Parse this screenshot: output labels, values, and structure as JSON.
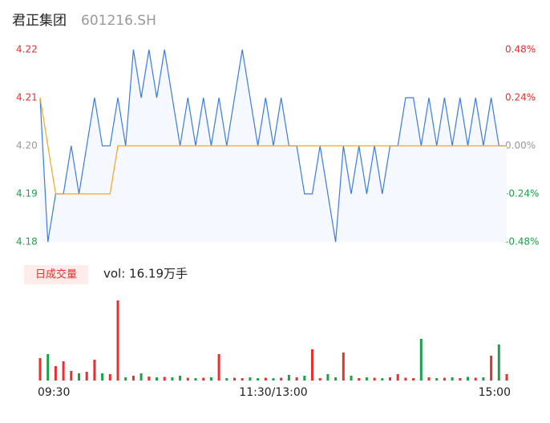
{
  "header": {
    "title": "君正集团",
    "code": "601216.SH"
  },
  "chart_data": [
    {
      "type": "line",
      "xlim": [
        0,
        60
      ],
      "ylim": [
        4.18,
        4.22
      ],
      "yticks": [
        4.22,
        4.21,
        {
          "value": 4.2,
          "label": "4.20"
        },
        4.19,
        4.18
      ],
      "y2lim": [
        -0.48,
        0.48
      ],
      "y2ticks": [
        {
          "value": 0.48,
          "label": "0.48%"
        },
        {
          "value": 0.24,
          "label": "0.24%"
        },
        {
          "value": 0,
          "label": "0.00%"
        },
        {
          "value": -0.24,
          "label": "-0.24%"
        },
        {
          "value": -0.48,
          "label": "-0.48%"
        }
      ],
      "series": [
        {
          "color": "#3b7be8",
          "values": [
            4.21,
            4.18,
            4.19,
            4.19,
            4.2,
            4.19,
            4.2,
            4.21,
            4.2,
            4.2,
            4.21,
            4.2,
            4.22,
            4.21,
            4.22,
            4.21,
            4.22,
            4.21,
            4.2,
            4.21,
            4.2,
            4.21,
            4.2,
            4.21,
            4.2,
            4.21,
            4.22,
            4.21,
            4.2,
            4.21,
            4.2,
            4.21,
            4.2,
            4.2,
            4.19,
            4.19,
            4.2,
            4.19,
            4.18,
            4.2,
            4.19,
            4.2,
            4.19,
            4.2,
            4.19,
            4.2,
            4.2,
            4.21,
            4.21,
            4.2,
            4.21,
            4.2,
            4.21,
            4.2,
            4.21,
            4.2,
            4.21,
            4.2,
            4.21,
            4.2,
            4.2
          ]
        },
        {
          "color": "#f5a623",
          "values": [
            4.21,
            4.2,
            4.19,
            4.19,
            4.19,
            4.19,
            4.19,
            4.19,
            4.19,
            4.19,
            4.2,
            4.2,
            4.2,
            4.2,
            4.2,
            4.2,
            4.2,
            4.2,
            4.2,
            4.2,
            4.2,
            4.2,
            4.2,
            4.2,
            4.2,
            4.2,
            4.2,
            4.2,
            4.2,
            4.2,
            4.2,
            4.2,
            4.2,
            4.2,
            4.2,
            4.2,
            4.2,
            4.2,
            4.2,
            4.2,
            4.2,
            4.2,
            4.2,
            4.2,
            4.2,
            4.2,
            4.2,
            4.2,
            4.2,
            4.2,
            4.2,
            4.2,
            4.2,
            4.2,
            4.2,
            4.2,
            4.2,
            4.2,
            4.2,
            4.2,
            4.2
          ]
        }
      ]
    },
    {
      "type": "bar",
      "legend": "日成交量",
      "summary": "vol: 16.19万手",
      "xlim": [
        0,
        60
      ],
      "ylim": [
        0,
        1000
      ],
      "xticks": [
        {
          "value": 0,
          "label": "09:30"
        },
        {
          "value": 30,
          "label": "11:30/13:00"
        },
        {
          "value": 60,
          "label": "15:00"
        }
      ],
      "up_color": "#e8312f",
      "down_color": "#1aa14a",
      "values": [
        280,
        330,
        180,
        240,
        120,
        90,
        110,
        260,
        90,
        80,
        1000,
        40,
        60,
        90,
        50,
        40,
        45,
        40,
        60,
        35,
        30,
        35,
        40,
        330,
        30,
        35,
        30,
        40,
        30,
        35,
        30,
        35,
        70,
        40,
        60,
        390,
        30,
        80,
        40,
        350,
        60,
        30,
        40,
        35,
        30,
        40,
        80,
        35,
        30,
        520,
        40,
        30,
        35,
        40,
        30,
        45,
        35,
        40,
        310,
        450,
        80
      ]
    }
  ]
}
